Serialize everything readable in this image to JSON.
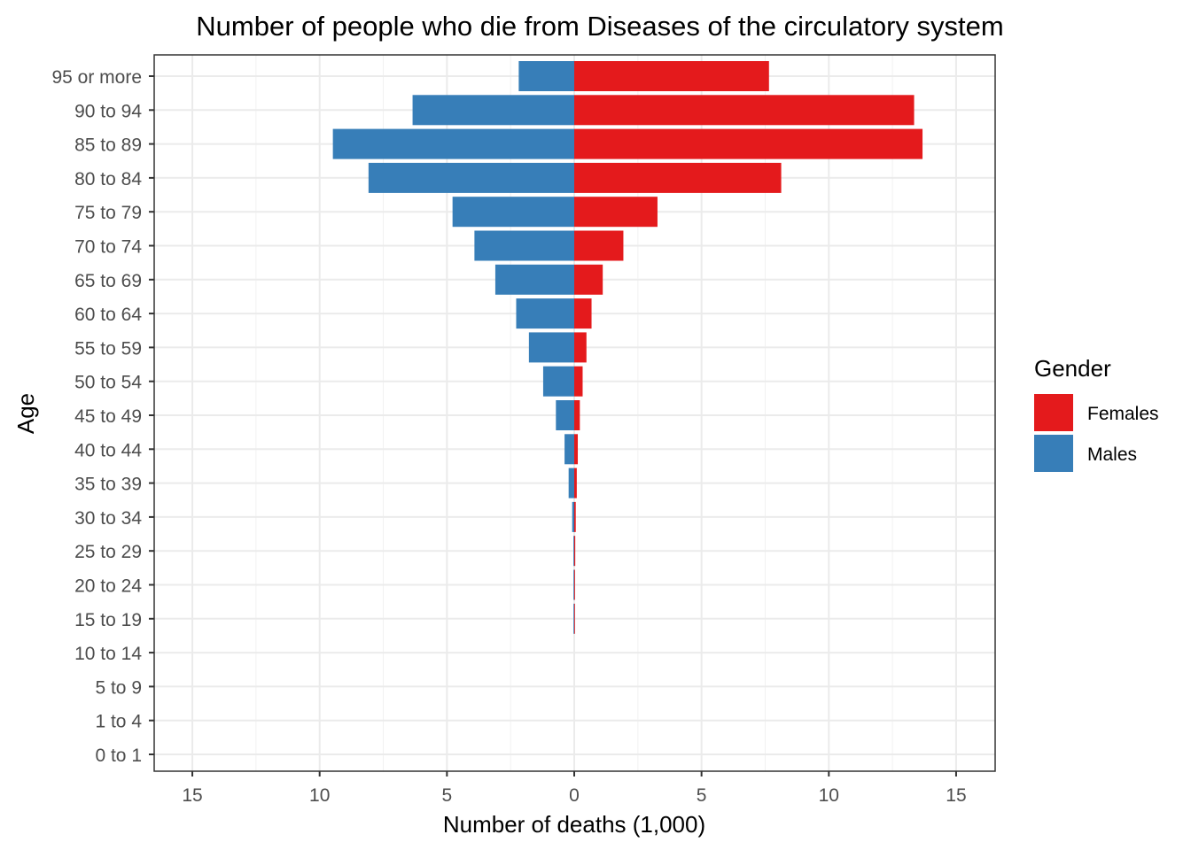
{
  "chart_data": {
    "type": "bar",
    "orientation": "horizontal",
    "title": "Number of people who die from Diseases of the circulatory system",
    "xlabel": "Number of deaths (1,000)",
    "ylabel": "Age",
    "xlim": [
      -16.5,
      16.5
    ],
    "xticks": [
      -15,
      -10,
      -5,
      0,
      5,
      10,
      15
    ],
    "xtick_labels": [
      "15",
      "10",
      "5",
      "0",
      "5",
      "10",
      "15"
    ],
    "categories": [
      "0 to 1",
      "1 to 4",
      "5 to 9",
      "10 to 14",
      "15 to 19",
      "20 to 24",
      "25 to 29",
      "30 to 34",
      "35 to 39",
      "40 to 44",
      "45 to 49",
      "50 to 54",
      "55 to 59",
      "60 to 64",
      "65 to 69",
      "70 to 74",
      "75 to 79",
      "80 to 84",
      "85 to 89",
      "90 to 94",
      "95 or more"
    ],
    "series": [
      {
        "name": "Females",
        "color": "#E41A1C",
        "values": [
          0,
          0,
          0,
          0,
          0.02,
          0.03,
          0.04,
          0.06,
          0.1,
          0.14,
          0.22,
          0.33,
          0.48,
          0.68,
          1.12,
          1.93,
          3.27,
          8.13,
          13.68,
          13.35,
          7.65
        ]
      },
      {
        "name": "Males",
        "color": "#377EB8",
        "values": [
          0,
          0,
          0,
          0,
          0.01,
          0.02,
          0.03,
          0.08,
          0.22,
          0.38,
          0.72,
          1.22,
          1.78,
          2.28,
          3.1,
          3.92,
          4.78,
          8.08,
          9.48,
          6.35,
          2.18
        ]
      }
    ],
    "grid": true,
    "legend": {
      "title": "Gender",
      "position": "right"
    }
  }
}
